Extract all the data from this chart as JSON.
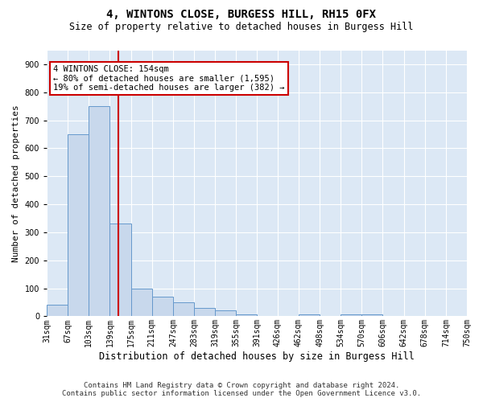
{
  "title": "4, WINTONS CLOSE, BURGESS HILL, RH15 0FX",
  "subtitle": "Size of property relative to detached houses in Burgess Hill",
  "xlabel": "Distribution of detached houses by size in Burgess Hill",
  "ylabel": "Number of detached properties",
  "footer_line1": "Contains HM Land Registry data © Crown copyright and database right 2024.",
  "footer_line2": "Contains public sector information licensed under the Open Government Licence v3.0.",
  "annotation_line1": "4 WINTONS CLOSE: 154sqm",
  "annotation_line2": "← 80% of detached houses are smaller (1,595)",
  "annotation_line3": "19% of semi-detached houses are larger (382) →",
  "property_size": 154,
  "bar_color": "#c8d8ec",
  "bar_edgecolor": "#6699cc",
  "redline_color": "#cc0000",
  "bg_color": "#dce8f5",
  "grid_color": "#ffffff",
  "bins": [
    31,
    67,
    103,
    139,
    175,
    211,
    247,
    283,
    319,
    355,
    391,
    426,
    462,
    498,
    534,
    570,
    606,
    642,
    678,
    714,
    750
  ],
  "counts": [
    40,
    650,
    750,
    330,
    100,
    70,
    50,
    30,
    20,
    8,
    0,
    0,
    8,
    0,
    8,
    8,
    0,
    0,
    0,
    0
  ],
  "ylim": [
    0,
    950
  ],
  "yticks": [
    0,
    100,
    200,
    300,
    400,
    500,
    600,
    700,
    800,
    900
  ],
  "figsize": [
    6.0,
    5.0
  ],
  "dpi": 100,
  "title_fontsize": 10,
  "subtitle_fontsize": 8.5,
  "ylabel_fontsize": 8,
  "xlabel_fontsize": 8.5,
  "tick_fontsize": 7,
  "footer_fontsize": 6.5,
  "annot_fontsize": 7.5
}
